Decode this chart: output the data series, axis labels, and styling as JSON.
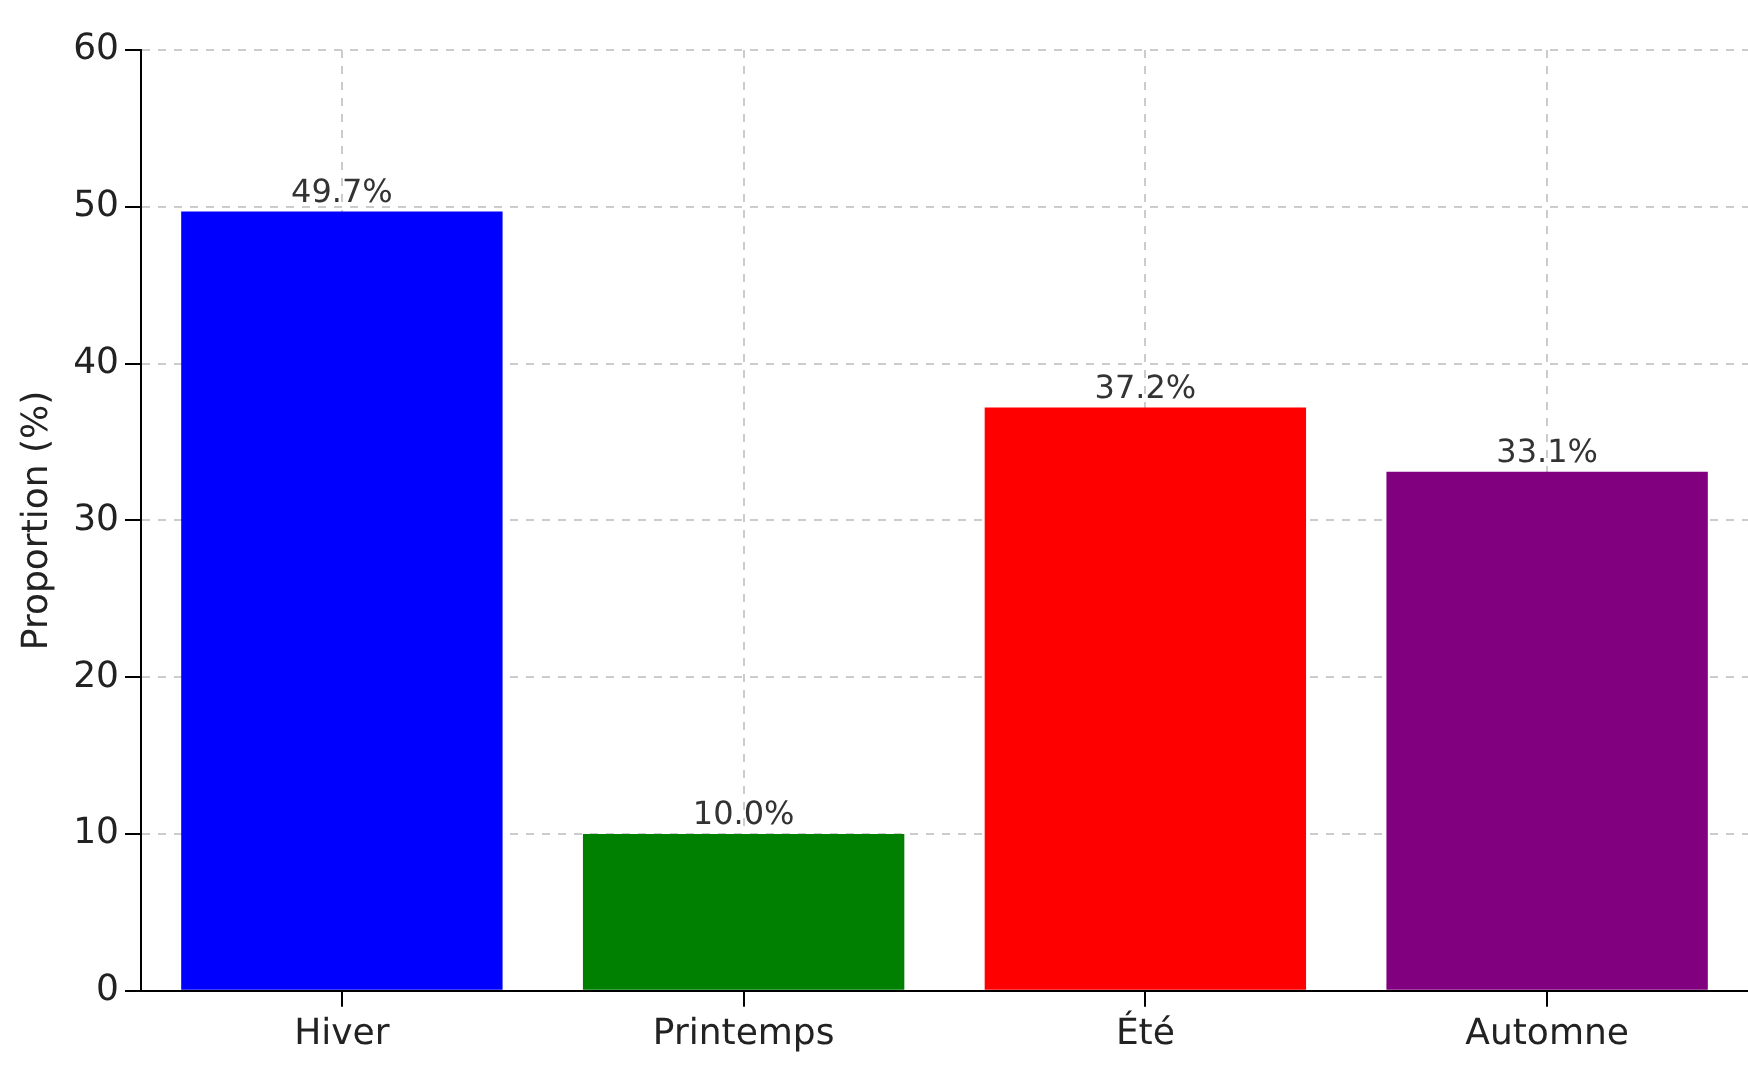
{
  "chart_data": {
    "type": "bar",
    "ylabel": "Proportion (%)",
    "categories": [
      "Hiver",
      "Printemps",
      "Été",
      "Automne"
    ],
    "values": [
      49.7,
      10.0,
      37.2,
      33.1
    ],
    "colors": [
      "#0000ff",
      "#008000",
      "#ff0000",
      "#800080"
    ],
    "value_labels": [
      "49.7%",
      "10.0%",
      "37.2%",
      "33.1%"
    ],
    "ylim": [
      0,
      60
    ],
    "yticks": [
      0,
      10,
      20,
      30,
      40,
      50,
      60
    ],
    "grid": true
  }
}
